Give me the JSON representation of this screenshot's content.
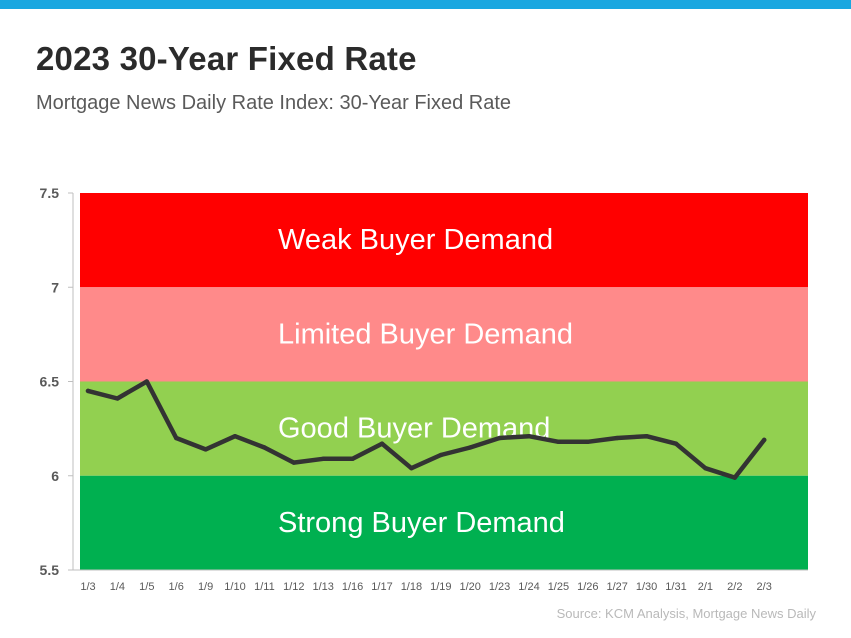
{
  "header": {
    "title": "2023 30-Year Fixed Rate",
    "subtitle": "Mortgage News Daily Rate Index: 30-Year Fixed Rate"
  },
  "source": "Source: KCM Analysis, Mortgage News Daily",
  "colors": {
    "top_bar": "#1aa7e0",
    "weak": "#ff0000",
    "limited": "#ff8a8a",
    "good": "#92d050",
    "strong": "#00b050",
    "line": "#333333"
  },
  "chart_data": {
    "type": "line",
    "title": "2023 30-Year Fixed Rate",
    "subtitle": "Mortgage News Daily Rate Index: 30-Year Fixed Rate",
    "xlabel": "",
    "ylabel": "",
    "ylim": [
      5.5,
      7.5
    ],
    "yticks": [
      "7.5",
      "7",
      "6.5",
      "6",
      "5.5"
    ],
    "categories": [
      "1/3",
      "1/4",
      "1/5",
      "1/6",
      "1/9",
      "1/10",
      "1/11",
      "1/12",
      "1/13",
      "1/16",
      "1/17",
      "1/18",
      "1/19",
      "1/20",
      "1/23",
      "1/24",
      "1/25",
      "1/26",
      "1/27",
      "1/30",
      "1/31",
      "2/1",
      "2/2",
      "2/3"
    ],
    "values": [
      6.45,
      6.41,
      6.5,
      6.2,
      6.14,
      6.21,
      6.15,
      6.07,
      6.09,
      6.09,
      6.17,
      6.04,
      6.11,
      6.15,
      6.2,
      6.21,
      6.18,
      6.18,
      6.2,
      6.21,
      6.17,
      6.04,
      5.99,
      6.19
    ],
    "bands": [
      {
        "label": "Weak Buyer Demand",
        "from": 7.0,
        "to": 7.5,
        "color": "#ff0000"
      },
      {
        "label": "Limited Buyer Demand",
        "from": 6.5,
        "to": 7.0,
        "color": "#ff8a8a"
      },
      {
        "label": "Good Buyer Demand",
        "from": 6.0,
        "to": 6.5,
        "color": "#92d050"
      },
      {
        "label": "Strong Buyer Demand",
        "from": 5.5,
        "to": 6.0,
        "color": "#00b050"
      }
    ],
    "grid": false,
    "legend": "none"
  }
}
